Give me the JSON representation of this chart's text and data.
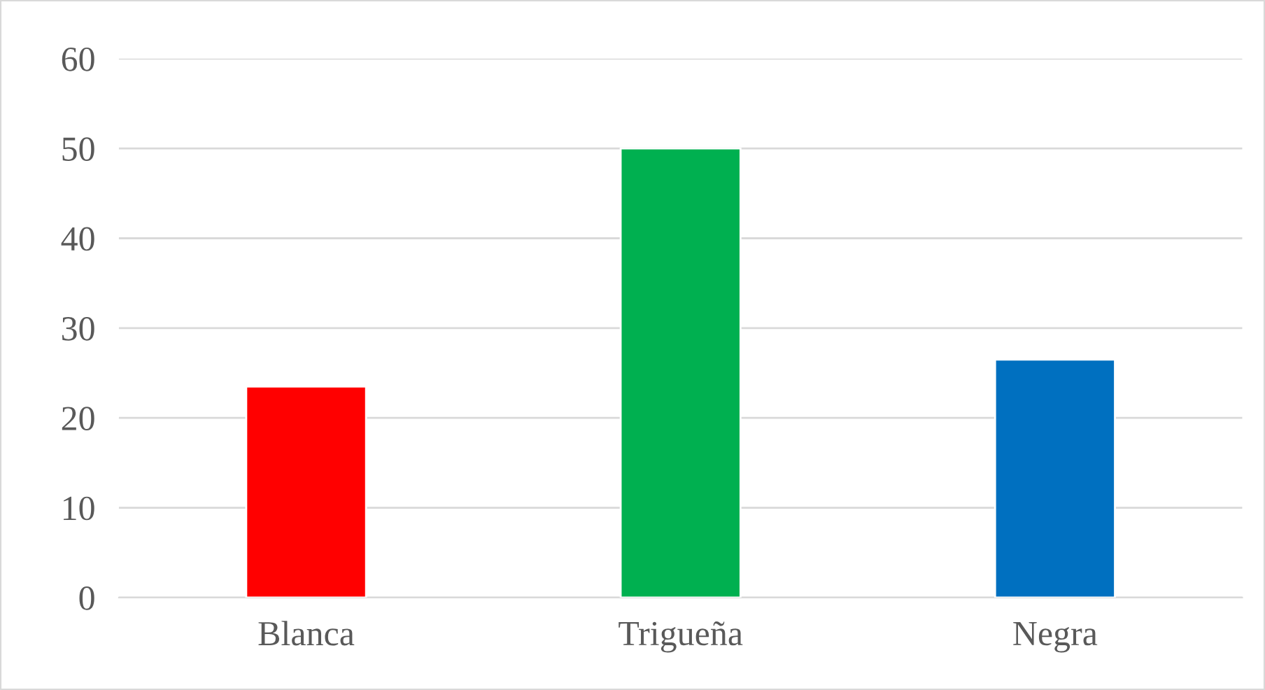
{
  "chart_data": {
    "type": "bar",
    "categories": [
      "Blanca",
      "Trigueña",
      "Negra"
    ],
    "values": [
      23.5,
      50,
      26.5
    ],
    "colors": [
      "#ff0000",
      "#00b050",
      "#0070c0"
    ],
    "ylim": [
      0,
      60
    ],
    "yticks": [
      0,
      10,
      20,
      30,
      40,
      50,
      60
    ],
    "grid": "y"
  }
}
